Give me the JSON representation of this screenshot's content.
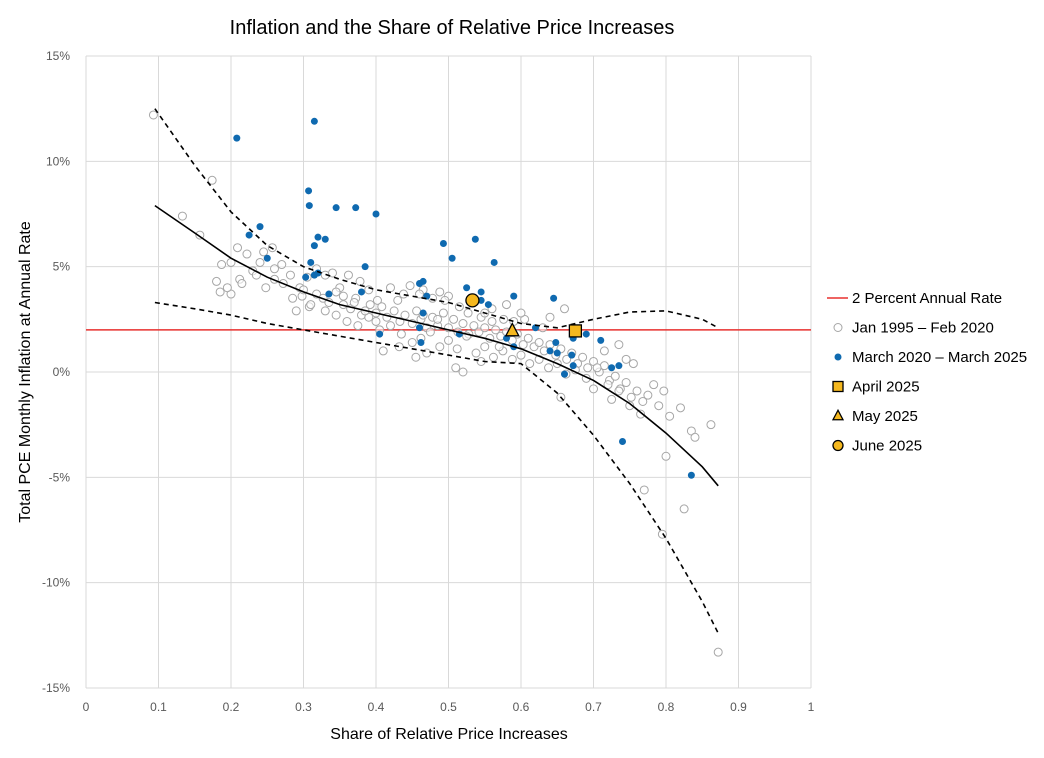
{
  "chart_data": {
    "type": "scatter",
    "title": "Inflation and the Share of Relative Price Increases",
    "xlabel": "Share of Relative Price Increases",
    "ylabel": "Total PCE Monthly Inflation at Annual Rate",
    "xlim": [
      0,
      1
    ],
    "ylim": [
      -15,
      15
    ],
    "x_ticks": [
      0,
      0.1,
      0.2,
      0.3,
      0.4,
      0.5,
      0.6,
      0.7,
      0.8,
      0.9,
      1
    ],
    "x_tick_labels": [
      "0",
      "0.1",
      "0.2",
      "0.3",
      "0.4",
      "0.5",
      "0.6",
      "0.7",
      "0.8",
      "0.9",
      "1"
    ],
    "y_ticks": [
      -15,
      -10,
      -5,
      0,
      5,
      10,
      15
    ],
    "y_tick_labels": [
      "-15%",
      "-10%",
      "-5%",
      "0%",
      "5%",
      "10%",
      "15%"
    ],
    "grid": true,
    "legend_position": "right",
    "colors": {
      "reference_line": "#e8312f",
      "historical_marker_stroke": "#a6a6a6",
      "recent_marker": "#0f6ab0",
      "highlight_fill": "#f5b81f",
      "fit_line": "#000000",
      "grid": "#d9d9d9"
    },
    "reference_line": {
      "name": "2 Percent Annual Rate",
      "y": 2
    },
    "series": [
      {
        "name": "Jan 1995 – Feb 2020",
        "marker": "hollow-circle",
        "points": [
          [
            0.093,
            12.2
          ],
          [
            0.174,
            9.1
          ],
          [
            0.133,
            7.4
          ],
          [
            0.157,
            6.5
          ],
          [
            0.187,
            5.1
          ],
          [
            0.2,
            5.2
          ],
          [
            0.209,
            5.9
          ],
          [
            0.222,
            5.6
          ],
          [
            0.24,
            5.2
          ],
          [
            0.245,
            5.7
          ],
          [
            0.257,
            5.9
          ],
          [
            0.27,
            5.1
          ],
          [
            0.282,
            4.6
          ],
          [
            0.295,
            4.0
          ],
          [
            0.305,
            4.5
          ],
          [
            0.318,
            4.9
          ],
          [
            0.33,
            4.6
          ],
          [
            0.34,
            4.7
          ],
          [
            0.35,
            4.0
          ],
          [
            0.362,
            4.6
          ],
          [
            0.378,
            4.3
          ],
          [
            0.39,
            3.9
          ],
          [
            0.402,
            3.4
          ],
          [
            0.42,
            4.0
          ],
          [
            0.438,
            3.7
          ],
          [
            0.447,
            4.1
          ],
          [
            0.465,
            3.9
          ],
          [
            0.478,
            3.5
          ],
          [
            0.488,
            3.8
          ],
          [
            0.5,
            3.6
          ],
          [
            0.515,
            3.1
          ],
          [
            0.527,
            2.8
          ],
          [
            0.545,
            2.6
          ],
          [
            0.56,
            2.4
          ],
          [
            0.576,
            2.5
          ],
          [
            0.59,
            2.4
          ],
          [
            0.605,
            2.5
          ],
          [
            0.64,
            2.6
          ],
          [
            0.66,
            3.0
          ],
          [
            0.18,
            4.3
          ],
          [
            0.185,
            3.8
          ],
          [
            0.2,
            3.7
          ],
          [
            0.212,
            4.4
          ],
          [
            0.23,
            4.8
          ],
          [
            0.248,
            4.0
          ],
          [
            0.26,
            4.9
          ],
          [
            0.272,
            4.2
          ],
          [
            0.285,
            3.5
          ],
          [
            0.298,
            3.6
          ],
          [
            0.308,
            3.1
          ],
          [
            0.318,
            3.7
          ],
          [
            0.327,
            3.5
          ],
          [
            0.335,
            3.3
          ],
          [
            0.345,
            3.8
          ],
          [
            0.355,
            3.2
          ],
          [
            0.365,
            3.0
          ],
          [
            0.372,
            3.5
          ],
          [
            0.38,
            2.7
          ],
          [
            0.392,
            3.2
          ],
          [
            0.4,
            2.8
          ],
          [
            0.408,
            3.1
          ],
          [
            0.415,
            2.6
          ],
          [
            0.425,
            2.9
          ],
          [
            0.433,
            2.4
          ],
          [
            0.44,
            2.7
          ],
          [
            0.45,
            2.3
          ],
          [
            0.456,
            2.9
          ],
          [
            0.462,
            2.5
          ],
          [
            0.47,
            2.1
          ],
          [
            0.478,
            2.6
          ],
          [
            0.485,
            2.2
          ],
          [
            0.493,
            2.8
          ],
          [
            0.5,
            2.1
          ],
          [
            0.507,
            2.5
          ],
          [
            0.513,
            1.9
          ],
          [
            0.52,
            2.3
          ],
          [
            0.528,
            1.8
          ],
          [
            0.535,
            2.2
          ],
          [
            0.542,
            1.9
          ],
          [
            0.55,
            2.1
          ],
          [
            0.557,
            1.6
          ],
          [
            0.565,
            2.0
          ],
          [
            0.572,
            1.7
          ],
          [
            0.58,
            1.9
          ],
          [
            0.588,
            1.5
          ],
          [
            0.595,
            1.8
          ],
          [
            0.603,
            1.3
          ],
          [
            0.61,
            1.6
          ],
          [
            0.618,
            1.2
          ],
          [
            0.625,
            1.4
          ],
          [
            0.632,
            1.0
          ],
          [
            0.64,
            1.3
          ],
          [
            0.648,
            0.8
          ],
          [
            0.655,
            1.1
          ],
          [
            0.663,
            0.6
          ],
          [
            0.67,
            0.9
          ],
          [
            0.678,
            0.4
          ],
          [
            0.685,
            0.7
          ],
          [
            0.692,
            0.2
          ],
          [
            0.7,
            0.5
          ],
          [
            0.708,
            0.0
          ],
          [
            0.715,
            0.3
          ],
          [
            0.722,
            -0.4
          ],
          [
            0.73,
            -0.2
          ],
          [
            0.737,
            -0.8
          ],
          [
            0.745,
            -0.5
          ],
          [
            0.752,
            -1.2
          ],
          [
            0.76,
            -0.9
          ],
          [
            0.768,
            -1.4
          ],
          [
            0.775,
            -1.1
          ],
          [
            0.783,
            -0.6
          ],
          [
            0.79,
            -1.6
          ],
          [
            0.797,
            -0.9
          ],
          [
            0.805,
            -2.1
          ],
          [
            0.82,
            -1.7
          ],
          [
            0.835,
            -2.8
          ],
          [
            0.84,
            -3.1
          ],
          [
            0.862,
            -2.5
          ],
          [
            0.8,
            -4.0
          ],
          [
            0.77,
            -5.6
          ],
          [
            0.825,
            -6.5
          ],
          [
            0.795,
            -7.7
          ],
          [
            0.872,
            -13.3
          ],
          [
            0.33,
            2.9
          ],
          [
            0.345,
            2.7
          ],
          [
            0.36,
            2.4
          ],
          [
            0.375,
            2.2
          ],
          [
            0.39,
            2.6
          ],
          [
            0.405,
            2.0
          ],
          [
            0.42,
            2.2
          ],
          [
            0.435,
            1.8
          ],
          [
            0.45,
            1.4
          ],
          [
            0.462,
            1.6
          ],
          [
            0.475,
            1.9
          ],
          [
            0.488,
            1.2
          ],
          [
            0.5,
            1.5
          ],
          [
            0.512,
            1.1
          ],
          [
            0.525,
            1.7
          ],
          [
            0.538,
            0.9
          ],
          [
            0.55,
            1.2
          ],
          [
            0.562,
            0.7
          ],
          [
            0.575,
            1.0
          ],
          [
            0.588,
            0.6
          ],
          [
            0.6,
            0.8
          ],
          [
            0.612,
            0.4
          ],
          [
            0.625,
            0.6
          ],
          [
            0.638,
            0.2
          ],
          [
            0.65,
            0.4
          ],
          [
            0.662,
            -0.1
          ],
          [
            0.675,
            0.1
          ],
          [
            0.69,
            -0.3
          ],
          [
            0.705,
            0.2
          ],
          [
            0.72,
            -0.6
          ],
          [
            0.735,
            -0.9
          ],
          [
            0.75,
            -1.6
          ],
          [
            0.765,
            -2.0
          ],
          [
            0.41,
            1.0
          ],
          [
            0.432,
            1.2
          ],
          [
            0.455,
            0.7
          ],
          [
            0.47,
            0.9
          ],
          [
            0.51,
            0.2
          ],
          [
            0.52,
            0.0
          ],
          [
            0.545,
            0.5
          ],
          [
            0.57,
            1.2
          ],
          [
            0.655,
            -1.2
          ],
          [
            0.7,
            -0.8
          ],
          [
            0.725,
            -1.3
          ],
          [
            0.745,
            0.6
          ],
          [
            0.755,
            0.4
          ],
          [
            0.715,
            1.0
          ],
          [
            0.735,
            1.3
          ],
          [
            0.63,
            2.1
          ],
          [
            0.6,
            2.8
          ],
          [
            0.58,
            3.2
          ],
          [
            0.56,
            3.0
          ],
          [
            0.495,
            3.4
          ],
          [
            0.46,
            3.7
          ],
          [
            0.43,
            3.4
          ],
          [
            0.3,
            3.9
          ],
          [
            0.31,
            3.2
          ],
          [
            0.29,
            2.9
          ],
          [
            0.26,
            4.4
          ],
          [
            0.235,
            4.6
          ],
          [
            0.215,
            4.2
          ],
          [
            0.195,
            4.0
          ],
          [
            0.55,
            2.8
          ],
          [
            0.485,
            2.5
          ],
          [
            0.465,
            2.7
          ],
          [
            0.4,
            2.4
          ],
          [
            0.385,
            2.9
          ],
          [
            0.37,
            3.3
          ],
          [
            0.355,
            3.6
          ]
        ]
      },
      {
        "name": "March 2020 – March 2025",
        "marker": "filled-circle",
        "points": [
          [
            0.208,
            11.1
          ],
          [
            0.315,
            11.9
          ],
          [
            0.307,
            8.6
          ],
          [
            0.308,
            7.9
          ],
          [
            0.345,
            7.8
          ],
          [
            0.372,
            7.8
          ],
          [
            0.4,
            7.5
          ],
          [
            0.24,
            6.9
          ],
          [
            0.225,
            6.5
          ],
          [
            0.32,
            6.4
          ],
          [
            0.33,
            6.3
          ],
          [
            0.315,
            6.0
          ],
          [
            0.493,
            6.1
          ],
          [
            0.537,
            6.3
          ],
          [
            0.505,
            5.4
          ],
          [
            0.563,
            5.2
          ],
          [
            0.25,
            5.4
          ],
          [
            0.31,
            5.2
          ],
          [
            0.385,
            5.0
          ],
          [
            0.303,
            4.5
          ],
          [
            0.315,
            4.6
          ],
          [
            0.32,
            4.7
          ],
          [
            0.46,
            4.2
          ],
          [
            0.465,
            4.3
          ],
          [
            0.38,
            3.8
          ],
          [
            0.335,
            3.7
          ],
          [
            0.47,
            3.6
          ],
          [
            0.525,
            4.0
          ],
          [
            0.545,
            3.8
          ],
          [
            0.545,
            3.4
          ],
          [
            0.555,
            3.2
          ],
          [
            0.59,
            3.6
          ],
          [
            0.645,
            3.5
          ],
          [
            0.465,
            2.8
          ],
          [
            0.405,
            1.8
          ],
          [
            0.46,
            2.1
          ],
          [
            0.515,
            1.8
          ],
          [
            0.58,
            1.6
          ],
          [
            0.59,
            1.2
          ],
          [
            0.62,
            2.1
          ],
          [
            0.64,
            1.0
          ],
          [
            0.65,
            0.9
          ],
          [
            0.67,
            0.8
          ],
          [
            0.672,
            1.6
          ],
          [
            0.66,
            -0.1
          ],
          [
            0.672,
            0.3
          ],
          [
            0.69,
            1.8
          ],
          [
            0.71,
            1.5
          ],
          [
            0.725,
            0.2
          ],
          [
            0.735,
            0.3
          ],
          [
            0.74,
            -3.3
          ],
          [
            0.835,
            -4.9
          ],
          [
            0.462,
            1.4
          ],
          [
            0.648,
            1.4
          ]
        ]
      },
      {
        "name": "April 2025",
        "marker": "square",
        "points": [
          [
            0.675,
            1.95
          ]
        ]
      },
      {
        "name": "May 2025",
        "marker": "triangle",
        "points": [
          [
            0.588,
            1.95
          ]
        ]
      },
      {
        "name": "June 2025",
        "marker": "large-circle",
        "points": [
          [
            0.533,
            3.4
          ]
        ]
      }
    ],
    "fit_lines": [
      {
        "name": "fit",
        "style": "solid",
        "points": [
          [
            0.095,
            7.9
          ],
          [
            0.15,
            6.6
          ],
          [
            0.2,
            5.4
          ],
          [
            0.25,
            4.5
          ],
          [
            0.3,
            3.8
          ],
          [
            0.35,
            3.2
          ],
          [
            0.4,
            2.8
          ],
          [
            0.45,
            2.4
          ],
          [
            0.5,
            2.0
          ],
          [
            0.55,
            1.6
          ],
          [
            0.6,
            1.1
          ],
          [
            0.65,
            0.4
          ],
          [
            0.7,
            -0.4
          ],
          [
            0.75,
            -1.5
          ],
          [
            0.8,
            -2.9
          ],
          [
            0.85,
            -4.5
          ],
          [
            0.872,
            -5.4
          ]
        ]
      },
      {
        "name": "upper band",
        "style": "dashed",
        "points": [
          [
            0.095,
            12.5
          ],
          [
            0.15,
            9.8
          ],
          [
            0.2,
            7.6
          ],
          [
            0.25,
            6.0
          ],
          [
            0.3,
            5.0
          ],
          [
            0.35,
            4.4
          ],
          [
            0.4,
            3.9
          ],
          [
            0.45,
            3.6
          ],
          [
            0.5,
            3.3
          ],
          [
            0.55,
            2.8
          ],
          [
            0.6,
            2.3
          ],
          [
            0.65,
            2.1
          ],
          [
            0.7,
            2.5
          ],
          [
            0.75,
            2.85
          ],
          [
            0.8,
            2.9
          ],
          [
            0.85,
            2.5
          ],
          [
            0.872,
            2.1
          ]
        ]
      },
      {
        "name": "lower band",
        "style": "dashed",
        "points": [
          [
            0.095,
            3.3
          ],
          [
            0.15,
            3.0
          ],
          [
            0.2,
            2.7
          ],
          [
            0.25,
            2.3
          ],
          [
            0.3,
            2.0
          ],
          [
            0.35,
            1.7
          ],
          [
            0.4,
            1.4
          ],
          [
            0.45,
            1.1
          ],
          [
            0.5,
            0.8
          ],
          [
            0.55,
            0.5
          ],
          [
            0.6,
            0.4
          ],
          [
            0.65,
            -1.0
          ],
          [
            0.7,
            -3.0
          ],
          [
            0.75,
            -5.3
          ],
          [
            0.8,
            -7.9
          ],
          [
            0.85,
            -10.9
          ],
          [
            0.872,
            -12.4
          ]
        ]
      }
    ]
  }
}
